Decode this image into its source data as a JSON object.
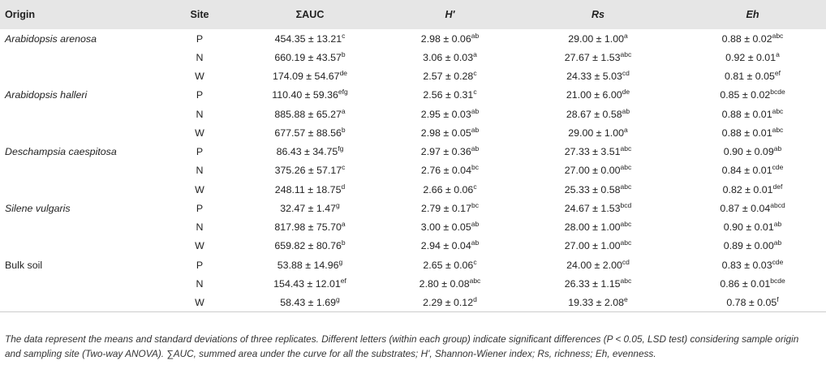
{
  "table": {
    "headers": [
      "Origin",
      "Site",
      "ΣAUC",
      "H'",
      "Rs",
      "Eh"
    ],
    "rows": [
      {
        "origin": "Arabidopsis arenosa",
        "site": "P",
        "auc": "454.35 ± 13.21",
        "auc_sup": "c",
        "h": "2.98 ± 0.06",
        "h_sup": "ab",
        "rs": "29.00 ± 1.00",
        "rs_sup": "a",
        "eh": "0.88 ± 0.02",
        "eh_sup": "abc"
      },
      {
        "origin": "",
        "site": "N",
        "auc": "660.19 ± 43.57",
        "auc_sup": "b",
        "h": "3.06 ± 0.03",
        "h_sup": "a",
        "rs": "27.67 ± 1.53",
        "rs_sup": "abc",
        "eh": "0.92 ± 0.01",
        "eh_sup": "a"
      },
      {
        "origin": "",
        "site": "W",
        "auc": "174.09 ± 54.67",
        "auc_sup": "de",
        "h": "2.57 ± 0.28",
        "h_sup": "c",
        "rs": "24.33 ± 5.03",
        "rs_sup": "cd",
        "eh": "0.81 ± 0.05",
        "eh_sup": "ef"
      },
      {
        "origin": "Arabidopsis halleri",
        "site": "P",
        "auc": "110.40 ± 59.36",
        "auc_sup": "efg",
        "h": "2.56 ± 0.31",
        "h_sup": "c",
        "rs": "21.00 ± 6.00",
        "rs_sup": "de",
        "eh": "0.85 ± 0.02",
        "eh_sup": "bcde"
      },
      {
        "origin": "",
        "site": "N",
        "auc": "885.88 ± 65.27",
        "auc_sup": "a",
        "h": "2.95 ± 0.03",
        "h_sup": "ab",
        "rs": "28.67 ± 0.58",
        "rs_sup": "ab",
        "eh": "0.88 ± 0.01",
        "eh_sup": "abc"
      },
      {
        "origin": "",
        "site": "W",
        "auc": "677.57 ± 88.56",
        "auc_sup": "b",
        "h": "2.98 ± 0.05",
        "h_sup": "ab",
        "rs": "29.00 ± 1.00",
        "rs_sup": "a",
        "eh": "0.88 ± 0.01",
        "eh_sup": "abc"
      },
      {
        "origin": "Deschampsia caespitosa",
        "site": "P",
        "auc": "86.43 ± 34.75",
        "auc_sup": "fg",
        "h": "2.97 ± 0.36",
        "h_sup": "ab",
        "rs": "27.33 ± 3.51",
        "rs_sup": "abc",
        "eh": "0.90 ± 0.09",
        "eh_sup": "ab"
      },
      {
        "origin": "",
        "site": "N",
        "auc": "375.26 ± 57.17",
        "auc_sup": "c",
        "h": "2.76 ± 0.04",
        "h_sup": "bc",
        "rs": "27.00 ± 0.00",
        "rs_sup": "abc",
        "eh": "0.84 ± 0.01",
        "eh_sup": "cde"
      },
      {
        "origin": "",
        "site": "W",
        "auc": "248.11 ± 18.75",
        "auc_sup": "d",
        "h": "2.66 ± 0.06",
        "h_sup": "c",
        "rs": "25.33 ± 0.58",
        "rs_sup": "abc",
        "eh": "0.82 ± 0.01",
        "eh_sup": "def"
      },
      {
        "origin": "Silene vulgaris",
        "site": "P",
        "auc": "32.47 ± 1.47",
        "auc_sup": "g",
        "h": "2.79 ± 0.17",
        "h_sup": "bc",
        "rs": "24.67 ± 1.53",
        "rs_sup": "bcd",
        "eh": "0.87 ± 0.04",
        "eh_sup": "abcd"
      },
      {
        "origin": "",
        "site": "N",
        "auc": "817.98 ± 75.70",
        "auc_sup": "a",
        "h": "3.00 ± 0.05",
        "h_sup": "ab",
        "rs": "28.00 ± 1.00",
        "rs_sup": "abc",
        "eh": "0.90 ± 0.01",
        "eh_sup": "ab"
      },
      {
        "origin": "",
        "site": "W",
        "auc": "659.82 ± 80.76",
        "auc_sup": "b",
        "h": "2.94 ± 0.04",
        "h_sup": "ab",
        "rs": "27.00 ± 1.00",
        "rs_sup": "abc",
        "eh": "0.89 ± 0.00",
        "eh_sup": "ab"
      },
      {
        "origin": "Bulk soil",
        "site": "P",
        "auc": "53.88 ± 14.96",
        "auc_sup": "g",
        "h": "2.65 ± 0.06",
        "h_sup": "c",
        "rs": "24.00 ± 2.00",
        "rs_sup": "cd",
        "eh": "0.83 ± 0.03",
        "eh_sup": "cde"
      },
      {
        "origin": "",
        "site": "N",
        "auc": "154.43 ± 12.01",
        "auc_sup": "ef",
        "h": "2.80 ± 0.08",
        "h_sup": "abc",
        "rs": "26.33 ± 1.15",
        "rs_sup": "abc",
        "eh": "0.86 ± 0.01",
        "eh_sup": "bcde"
      },
      {
        "origin": "",
        "site": "W",
        "auc": "58.43 ± 1.69",
        "auc_sup": "g",
        "h": "2.29 ± 0.12",
        "h_sup": "d",
        "rs": "19.33 ± 2.08",
        "rs_sup": "e",
        "eh": "0.78 ± 0.05",
        "eh_sup": "f"
      }
    ]
  },
  "note": "The data represent the means and standard deviations of three replicates. Different letters (within each group) indicate significant differences (P < 0.05, LSD test) considering sample origin and sampling site (Two-way ANOVA). ∑AUC, summed area under the curve for all the substrates; H', Shannon-Wiener index; Rs, richness; Eh, evenness."
}
